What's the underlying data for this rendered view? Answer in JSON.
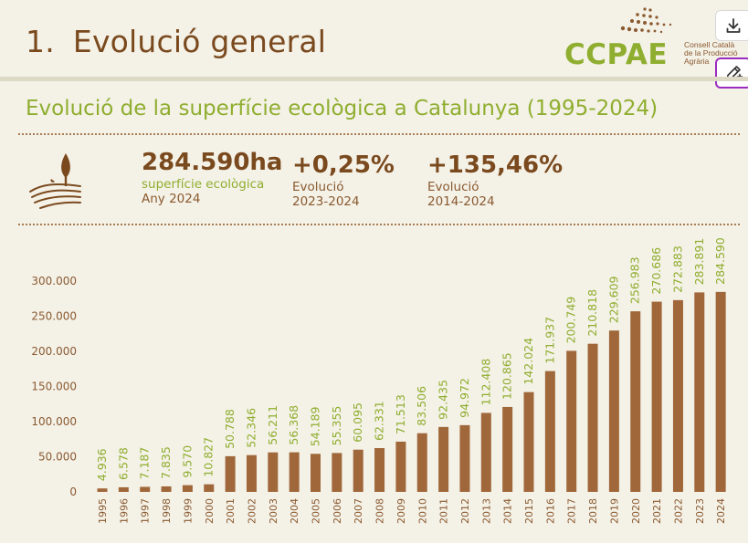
{
  "header": {
    "section_number": "1.",
    "section_title": "Evolució general",
    "logo_text": "CCPAE",
    "logo_subtitle_lines": [
      "Consell Català",
      "de la Producció",
      "Agrària"
    ]
  },
  "toolbar": {
    "download_icon": "download-icon",
    "annotate_icon": "annotate-icon"
  },
  "stats": {
    "total_value": "284.590ha",
    "total_label": "superfície ecològica",
    "total_year": "Any 2024",
    "change1_value": "+0,25%",
    "change1_label": "Evolució",
    "change1_period": "2023-2024",
    "change2_value": "+135,46%",
    "change2_label": "Evolució",
    "change2_period": "2014-2024",
    "icon": "field-tree-icon"
  },
  "colors": {
    "bar": "#a0683a",
    "label_green": "#8fae2f",
    "title_brown": "#7a4a1e"
  },
  "chart_data": {
    "type": "bar",
    "title": "Evolució de la superfície ecològica a Catalunya (1995-2024)",
    "xlabel": "",
    "ylabel": "",
    "ylim": [
      0,
      300000
    ],
    "y_ticks": [
      0,
      50000,
      100000,
      150000,
      200000,
      250000,
      300000
    ],
    "y_tick_labels": [
      "0",
      "50.000",
      "100.000",
      "150.000",
      "200.000",
      "250.000",
      "300.000"
    ],
    "grid": false,
    "categories": [
      "1995",
      "1996",
      "1997",
      "1998",
      "1999",
      "2000",
      "2001",
      "2002",
      "2003",
      "2004",
      "2005",
      "2006",
      "2007",
      "2008",
      "2009",
      "2010",
      "2011",
      "2012",
      "2013",
      "2014",
      "2015",
      "2016",
      "2017",
      "2018",
      "2019",
      "2020",
      "2021",
      "2022",
      "2023",
      "2024"
    ],
    "values": [
      4936,
      6578,
      7187,
      7835,
      9570,
      10827,
      50788,
      52346,
      56211,
      56368,
      54189,
      55355,
      60095,
      62331,
      71513,
      83506,
      92435,
      94972,
      112408,
      120865,
      142024,
      171937,
      200749,
      210818,
      229609,
      256983,
      270686,
      272883,
      283891,
      284590
    ],
    "data_labels": [
      "4.936",
      "6.578",
      "7.187",
      "7.835",
      "9.570",
      "10.827",
      "50.788",
      "52.346",
      "56.211",
      "56.368",
      "54.189",
      "55.355",
      "60.095",
      "62.331",
      "71.513",
      "83.506",
      "92.435",
      "94.972",
      "112.408",
      "120.865",
      "142.024",
      "171.937",
      "200.749",
      "210.818",
      "229.609",
      "256.983",
      "270.686",
      "272.883",
      "283.891",
      "284.590"
    ]
  }
}
